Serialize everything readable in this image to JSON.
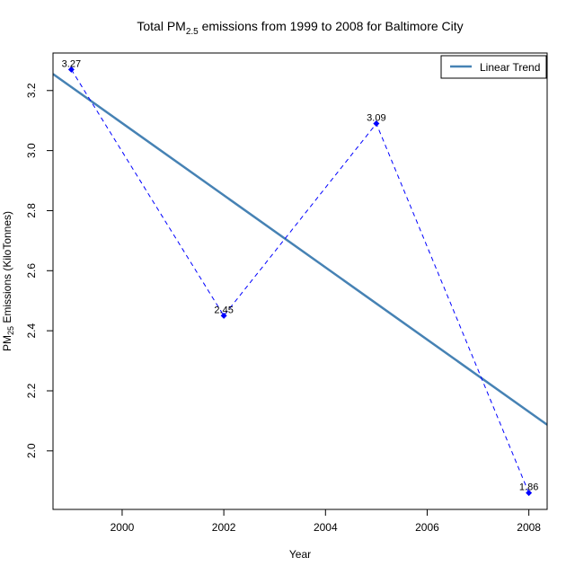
{
  "chart_data": {
    "type": "line",
    "title": {
      "prefix": "Total PM",
      "subscript": "2.5",
      "suffix": " emissions from 1999 to 2008 for Baltimore City"
    },
    "xlabel": "Year",
    "ylabel": {
      "prefix": "PM",
      "subscript": "25",
      "suffix": " Emissions (KiloTonnes)"
    },
    "xlim": [
      1998.64,
      2008.36
    ],
    "ylim": [
      1.805,
      3.325
    ],
    "x_ticks": [
      2000,
      2002,
      2004,
      2006,
      2008
    ],
    "y_ticks": [
      2.0,
      2.2,
      2.4,
      2.6,
      2.8,
      3.0,
      3.2
    ],
    "y_tick_labels": [
      "2.0",
      "2.2",
      "2.4",
      "2.6",
      "2.8",
      "3.0",
      "3.2"
    ],
    "series": [
      {
        "x": [
          1999,
          2002,
          2005,
          2008
        ],
        "y": [
          3.27,
          2.45,
          3.09,
          1.86
        ],
        "labels": [
          "3.27",
          "2.45",
          "3.09",
          "1.86"
        ],
        "style": "dashed",
        "color": "#0000ff"
      }
    ],
    "trend": {
      "name": "Linear Trend",
      "x": [
        1998.64,
        2008.36
      ],
      "y": [
        3.255,
        2.087
      ],
      "color": "#4682b4"
    },
    "legend_position": "top-right",
    "grid": false
  }
}
